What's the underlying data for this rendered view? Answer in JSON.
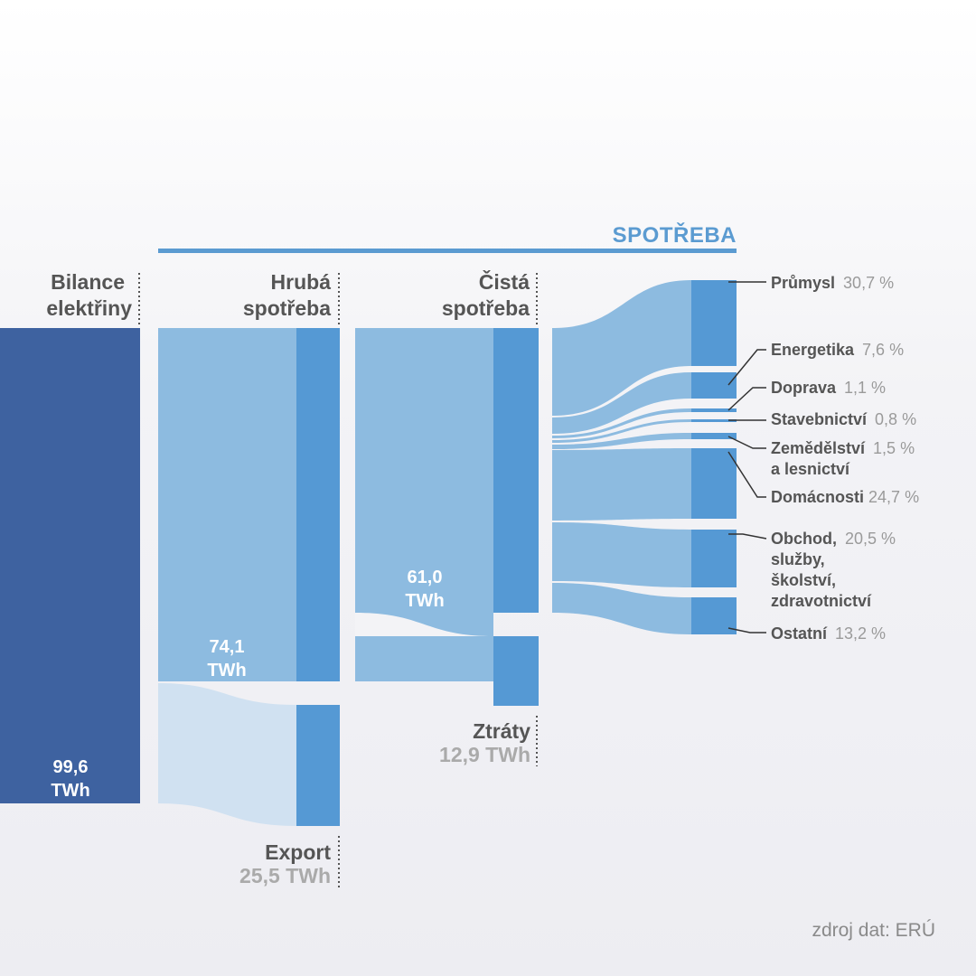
{
  "header": {
    "spotreba": "SPOTŘEBA"
  },
  "columns": {
    "bilance": {
      "line1": "Bilance",
      "line2": "elektřiny"
    },
    "hruba": {
      "line1": "Hrubá",
      "line2": "spotřeba"
    },
    "cista": {
      "line1": "Čistá",
      "line2": "spotřeba"
    }
  },
  "values": {
    "bilance": {
      "num": "99,6",
      "unit": "TWh"
    },
    "hruba": {
      "num": "74,1",
      "unit": "TWh"
    },
    "cista": {
      "num": "61,0",
      "unit": "TWh"
    }
  },
  "outflows": {
    "export": {
      "label": "Export",
      "value": "25,5 TWh"
    },
    "ztraty": {
      "label": "Ztráty",
      "value": "12,9 TWh"
    }
  },
  "categories": [
    {
      "lines": [
        "Průmysl"
      ],
      "pct": "30,7 %"
    },
    {
      "lines": [
        "Energetika"
      ],
      "pct": "7,6 %"
    },
    {
      "lines": [
        "Doprava"
      ],
      "pct": "1,1 %"
    },
    {
      "lines": [
        "Stavebnictví"
      ],
      "pct": "0,8 %"
    },
    {
      "lines": [
        "Zemědělství",
        "a lesnictví"
      ],
      "pct": "1,5 %"
    },
    {
      "lines": [
        "Domácnosti"
      ],
      "pct": "24,7 %"
    },
    {
      "lines": [
        "Obchod,",
        "služby,",
        "školství,",
        "zdravotnictví"
      ],
      "pct": "20,5 %"
    },
    {
      "lines": [
        "Ostatní"
      ],
      "pct": "13,2 %"
    }
  ],
  "source": "zdroj dat: ERÚ",
  "colors": {
    "dark_blue": "#3e62a0",
    "mid_blue": "#5599d4",
    "light_blue": "#8dbbe0",
    "pale_blue": "#d0e1f1",
    "accent": "#5b9bd1"
  }
}
